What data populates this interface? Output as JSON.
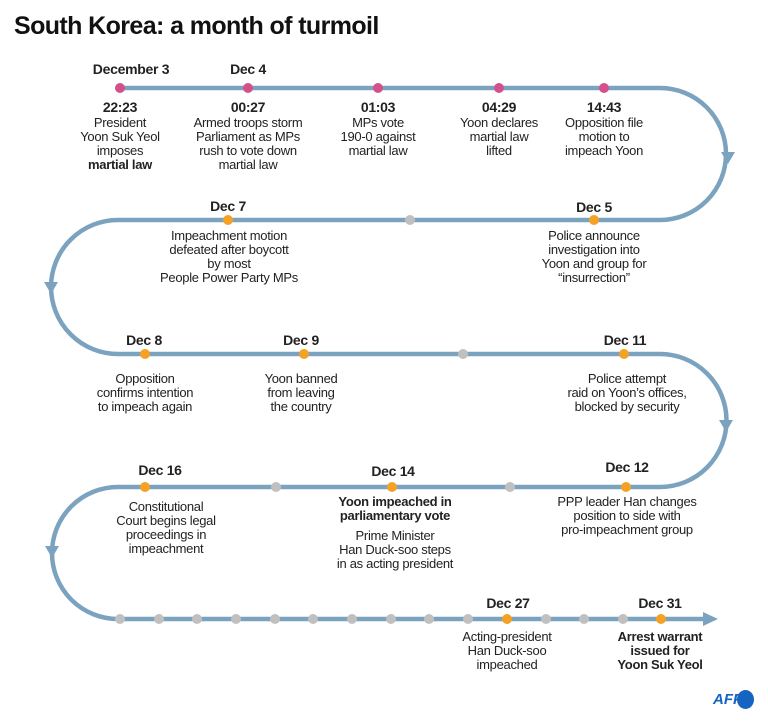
{
  "title": "South Korea: a month of turmoil",
  "colors": {
    "track": "#7ba3c0",
    "dec3_4": "#d4508a",
    "event": "#f5a123",
    "no_event": "#c0c0c0"
  },
  "events": [
    {
      "date": "December 3",
      "time": "22:23",
      "text": "President\nYoon Suk Yeol\nimposes",
      "bold": "martial law"
    },
    {
      "date": "Dec 4",
      "time": "00:27",
      "text": "Armed troops storm\nParliament as MPs\nrush to vote down\nmartial law"
    },
    {
      "time": "01:03",
      "text": "MPs vote\n190-0 against\nmartial law"
    },
    {
      "time": "04:29",
      "text": "Yoon declares\nmartial law\nlifted"
    },
    {
      "time": "14:43",
      "text": "Opposition file\nmotion to\nimpeach Yoon"
    },
    {
      "date": "Dec 5",
      "text": "Police announce\ninvestigation into\nYoon and group for\n“insurrection”"
    },
    {
      "date": "Dec 7",
      "text": "Impeachment motion\ndefeated after boycott\nby most\nPeople Power Party MPs"
    },
    {
      "date": "Dec 8",
      "text": "Opposition\nconfirms intention\nto impeach again"
    },
    {
      "date": "Dec 9",
      "text": "Yoon banned\nfrom leaving\nthe country"
    },
    {
      "date": "Dec 11",
      "text": "Police attempt\nraid on Yoon’s offices,\nblocked by security"
    },
    {
      "date": "Dec 12",
      "text": "PPP leader Han changes\nposition to side with\npro-impeachment group"
    },
    {
      "date": "Dec 14",
      "bold": "Yoon impeached in\nparliamentary vote",
      "text": "Prime Minister\nHan Duck-soo steps\nin as acting president"
    },
    {
      "date": "Dec 16",
      "text": "Constitutional\nCourt begins legal\nproceedings in\nimpeachment"
    },
    {
      "date": "Dec 27",
      "text": "Acting-president\nHan Duck-soo\nimpeached"
    },
    {
      "date": "Dec 31",
      "bold": "Arrest warrant\nissued for\nYoon Suk Yeol"
    }
  ],
  "logo": "AFP"
}
